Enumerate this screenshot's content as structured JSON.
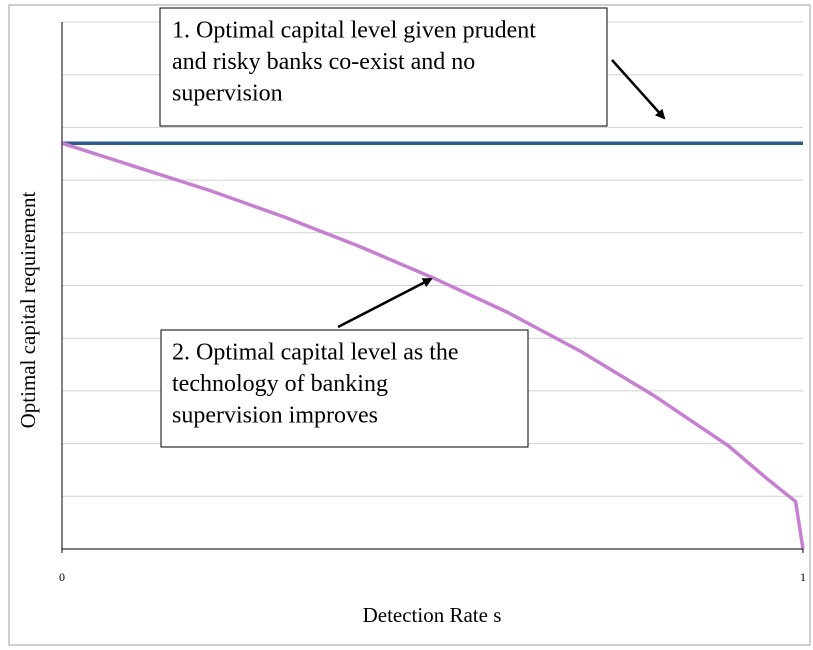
{
  "chart_data": {
    "type": "line",
    "x_label": "Detection Rate s",
    "y_label": "Optimal capital requirement",
    "x": [
      0,
      0.1,
      0.2,
      0.3,
      0.4,
      0.5,
      0.6,
      0.7,
      0.8,
      0.9,
      0.95,
      0.99,
      1
    ],
    "series": [
      {
        "color": "#2f5b8c",
        "values": [
          7.7,
          7.7,
          7.7,
          7.7,
          7.7,
          7.7,
          7.7,
          7.7,
          7.7,
          7.7,
          7.7,
          7.7,
          7.7
        ]
      },
      {
        "color": "#c77fd1",
        "values": [
          7.7,
          7.25,
          6.8,
          6.3,
          5.75,
          5.15,
          4.5,
          3.75,
          2.9,
          1.95,
          1.35,
          0.9,
          0
        ]
      }
    ],
    "xlim": [
      0,
      1
    ],
    "xticks": [
      0,
      1
    ],
    "ylim": [
      0,
      10
    ],
    "yticks": [
      0,
      1,
      2,
      3,
      4,
      5,
      6,
      7,
      8,
      9,
      10
    ],
    "grid": true,
    "annotations": [
      {
        "lines": [
          "1. Optimal capital level given prudent",
          "and risky banks co-exist and no",
          "supervision"
        ]
      },
      {
        "lines": [
          "2. Optimal capital level as the",
          "technology of banking",
          "supervision improves"
        ]
      }
    ]
  }
}
